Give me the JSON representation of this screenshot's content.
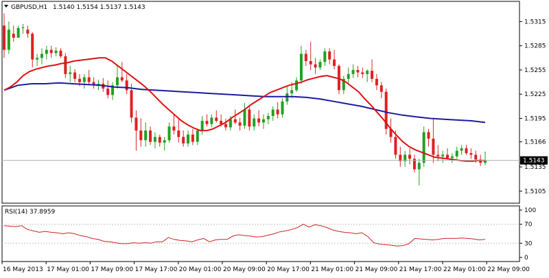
{
  "header": {
    "symbol": "GBPUSD,H1",
    "ohlc": "1.5140 1.5154 1.5137 1.5143"
  },
  "rsi": {
    "label": "RSI(14) 37.8959",
    "ticks": [
      "100",
      "70",
      "30",
      "0"
    ]
  },
  "colors": {
    "bull": "#22a022",
    "bear": "#dd2222",
    "ma_fast": "#dd1111",
    "ma_slow": "#1a1aa0",
    "rsi_line": "#cc2222",
    "last_price_label_bg": "#000000"
  },
  "chart_data": [
    {
      "type": "candlestick",
      "title": "",
      "ylim": [
        1.509,
        1.534
      ],
      "y_ticks": [
        "1.5315",
        "1.5285",
        "1.5255",
        "1.5225",
        "1.5195",
        "1.5166",
        "1.5135",
        "1.5105"
      ],
      "last_price": "1.5143",
      "x_ticks": [
        "16 May 2013",
        "17 May 01:00",
        "17 May 09:00",
        "17 May 17:00",
        "20 May 01:00",
        "20 May 09:00",
        "20 May 17:00",
        "21 May 01:00",
        "21 May 09:00",
        "21 May 17:00",
        "22 May 01:00",
        "22 May 09:00"
      ],
      "candles": [
        [
          1.531,
          1.5325,
          1.527,
          1.528
        ],
        [
          1.528,
          1.5315,
          1.5275,
          1.5305
        ],
        [
          1.53,
          1.531,
          1.529,
          1.5295
        ],
        [
          1.5295,
          1.531,
          1.5295,
          1.5307
        ],
        [
          1.5307,
          1.5312,
          1.53,
          1.5308
        ],
        [
          1.5305,
          1.531,
          1.5295,
          1.53
        ],
        [
          1.53,
          1.5302,
          1.5258,
          1.5268
        ],
        [
          1.5268,
          1.5275,
          1.526,
          1.527
        ],
        [
          1.527,
          1.5282,
          1.5262,
          1.5275
        ],
        [
          1.5275,
          1.5285,
          1.5268,
          1.528
        ],
        [
          1.528,
          1.5285,
          1.527,
          1.5276
        ],
        [
          1.5276,
          1.5283,
          1.5272,
          1.5279
        ],
        [
          1.5279,
          1.5282,
          1.527,
          1.5272
        ],
        [
          1.5272,
          1.5276,
          1.5245,
          1.525
        ],
        [
          1.525,
          1.526,
          1.524,
          1.5252
        ],
        [
          1.5252,
          1.5256,
          1.524,
          1.5244
        ],
        [
          1.5244,
          1.525,
          1.5235,
          1.524
        ],
        [
          1.524,
          1.525,
          1.5232,
          1.5246
        ],
        [
          1.5246,
          1.5255,
          1.5236,
          1.524
        ],
        [
          1.524,
          1.5246,
          1.5232,
          1.5236
        ],
        [
          1.5236,
          1.5243,
          1.523,
          1.5238
        ],
        [
          1.5238,
          1.5245,
          1.5228,
          1.5232
        ],
        [
          1.5232,
          1.5242,
          1.522,
          1.5224
        ],
        [
          1.5224,
          1.524,
          1.5218,
          1.5236
        ],
        [
          1.5236,
          1.5262,
          1.5232,
          1.5246
        ],
        [
          1.5246,
          1.5265,
          1.524,
          1.5242
        ],
        [
          1.5242,
          1.525,
          1.5225,
          1.523
        ],
        [
          1.523,
          1.5238,
          1.519,
          1.5196
        ],
        [
          1.5196,
          1.5205,
          1.5155,
          1.518
        ],
        [
          1.518,
          1.5195,
          1.516,
          1.5168
        ],
        [
          1.5168,
          1.519,
          1.516,
          1.518
        ],
        [
          1.518,
          1.5185,
          1.5162,
          1.5166
        ],
        [
          1.5166,
          1.5178,
          1.5158,
          1.5172
        ],
        [
          1.5172,
          1.5175,
          1.516,
          1.5165
        ],
        [
          1.5165,
          1.5172,
          1.5155,
          1.5168
        ],
        [
          1.5168,
          1.519,
          1.5165,
          1.5185
        ],
        [
          1.5185,
          1.52,
          1.5175,
          1.518
        ],
        [
          1.518,
          1.5195,
          1.5165,
          1.5172
        ],
        [
          1.5172,
          1.518,
          1.516,
          1.5164
        ],
        [
          1.5164,
          1.518,
          1.516,
          1.5175
        ],
        [
          1.5175,
          1.5182,
          1.5162,
          1.5166
        ],
        [
          1.5166,
          1.5182,
          1.5162,
          1.518
        ],
        [
          1.518,
          1.5198,
          1.5175,
          1.5192
        ],
        [
          1.5192,
          1.52,
          1.5185,
          1.5188
        ],
        [
          1.5188,
          1.52,
          1.5184,
          1.5196
        ],
        [
          1.5196,
          1.5205,
          1.519,
          1.5192
        ],
        [
          1.5192,
          1.52,
          1.5185,
          1.5188
        ],
        [
          1.5188,
          1.5195,
          1.518,
          1.5184
        ],
        [
          1.5184,
          1.5198,
          1.518,
          1.5194
        ],
        [
          1.5194,
          1.5206,
          1.5188,
          1.519
        ],
        [
          1.519,
          1.5196,
          1.518,
          1.5186
        ],
        [
          1.5186,
          1.5214,
          1.5182,
          1.5206
        ],
        [
          1.5206,
          1.521,
          1.518,
          1.5185
        ],
        [
          1.5185,
          1.52,
          1.518,
          1.5195
        ],
        [
          1.5195,
          1.5205,
          1.5185,
          1.519
        ],
        [
          1.519,
          1.52,
          1.5182,
          1.5194
        ],
        [
          1.5194,
          1.5202,
          1.5188,
          1.5198
        ],
        [
          1.5198,
          1.521,
          1.5192,
          1.5206
        ],
        [
          1.5206,
          1.5215,
          1.5195,
          1.52
        ],
        [
          1.52,
          1.522,
          1.5196,
          1.5216
        ],
        [
          1.5216,
          1.5235,
          1.5212,
          1.5226
        ],
        [
          1.5226,
          1.524,
          1.522,
          1.523
        ],
        [
          1.523,
          1.5246,
          1.5228,
          1.5242
        ],
        [
          1.5242,
          1.5285,
          1.5238,
          1.5275
        ],
        [
          1.5275,
          1.528,
          1.526,
          1.5266
        ],
        [
          1.5266,
          1.529,
          1.5255,
          1.5262
        ],
        [
          1.5262,
          1.527,
          1.525,
          1.5258
        ],
        [
          1.5258,
          1.5268,
          1.5255,
          1.5265
        ],
        [
          1.5265,
          1.5282,
          1.526,
          1.5278
        ],
        [
          1.5278,
          1.5282,
          1.5262,
          1.5268
        ],
        [
          1.5268,
          1.528,
          1.5256,
          1.526
        ],
        [
          1.526,
          1.5262,
          1.5225,
          1.523
        ],
        [
          1.523,
          1.5248,
          1.5225,
          1.5244
        ],
        [
          1.5244,
          1.5258,
          1.5238,
          1.525
        ],
        [
          1.525,
          1.5262,
          1.5245,
          1.5255
        ],
        [
          1.5255,
          1.526,
          1.5246,
          1.5252
        ],
        [
          1.5252,
          1.5258,
          1.5245,
          1.525
        ],
        [
          1.525,
          1.5256,
          1.524,
          1.5254
        ],
        [
          1.5254,
          1.5268,
          1.524,
          1.5244
        ],
        [
          1.5244,
          1.525,
          1.523,
          1.5236
        ],
        [
          1.5236,
          1.524,
          1.522,
          1.5228
        ],
        [
          1.5228,
          1.5232,
          1.5175,
          1.5182
        ],
        [
          1.5182,
          1.5195,
          1.5165,
          1.5172
        ],
        [
          1.5172,
          1.518,
          1.5145,
          1.515
        ],
        [
          1.515,
          1.516,
          1.5135,
          1.5142
        ],
        [
          1.5142,
          1.5155,
          1.5135,
          1.515
        ],
        [
          1.515,
          1.5158,
          1.5138,
          1.5145
        ],
        [
          1.5145,
          1.515,
          1.5128,
          1.5132
        ],
        [
          1.5132,
          1.5145,
          1.5112,
          1.514
        ],
        [
          1.514,
          1.5185,
          1.5135,
          1.5178
        ],
        [
          1.5178,
          1.5182,
          1.516,
          1.517
        ],
        [
          1.517,
          1.5195,
          1.514,
          1.515
        ],
        [
          1.515,
          1.5162,
          1.5142,
          1.5148
        ],
        [
          1.5148,
          1.5155,
          1.514,
          1.515
        ],
        [
          1.515,
          1.5158,
          1.5144,
          1.5146
        ],
        [
          1.5146,
          1.5152,
          1.514,
          1.5148
        ],
        [
          1.5148,
          1.516,
          1.5145,
          1.5155
        ],
        [
          1.5155,
          1.5162,
          1.515,
          1.5158
        ],
        [
          1.5158,
          1.5162,
          1.515,
          1.5152
        ],
        [
          1.5152,
          1.5158,
          1.5145,
          1.515
        ],
        [
          1.515,
          1.5155,
          1.514,
          1.5144
        ],
        [
          1.5144,
          1.515,
          1.5136,
          1.514
        ],
        [
          1.514,
          1.5154,
          1.5137,
          1.5143
        ]
      ],
      "ma_fast": [
        1.523,
        1.5234,
        1.524,
        1.5248,
        1.5253,
        1.5256,
        1.5258,
        1.526,
        1.5261,
        1.5263,
        1.5264,
        1.5266,
        1.5267,
        1.5268,
        1.5269,
        1.527,
        1.527,
        1.5266,
        1.526,
        1.5254,
        1.5248,
        1.5242,
        1.5236,
        1.5229,
        1.5221,
        1.5213,
        1.5206,
        1.5199,
        1.5192,
        1.5187,
        1.5183,
        1.518,
        1.518,
        1.5182,
        1.5186,
        1.519,
        1.5196,
        1.5201,
        1.5206,
        1.5212,
        1.5217,
        1.5222,
        1.5227,
        1.523,
        1.5233,
        1.5236,
        1.5238,
        1.524,
        1.5243,
        1.5245,
        1.5247,
        1.5248,
        1.5246,
        1.5244,
        1.524,
        1.5234,
        1.5228,
        1.5219,
        1.5211,
        1.5202,
        1.5193,
        1.5183,
        1.5174,
        1.5166,
        1.516,
        1.5156,
        1.5153,
        1.515,
        1.5147,
        1.5146,
        1.5145,
        1.5144,
        1.5143,
        1.5142,
        1.5142,
        1.5143,
        1.5143
      ],
      "ma_slow": [
        1.523,
        1.5236,
        1.5238,
        1.5238,
        1.5239,
        1.5238,
        1.5237,
        1.5236,
        1.5234,
        1.5233,
        1.5231,
        1.523,
        1.5229,
        1.5228,
        1.5227,
        1.5226,
        1.5225,
        1.5224,
        1.5223,
        1.5222,
        1.5222,
        1.5222,
        1.5221,
        1.5219,
        1.5216,
        1.5213,
        1.521,
        1.5206,
        1.5202,
        1.5199,
        1.5197,
        1.5195,
        1.5194,
        1.5193,
        1.5192,
        1.519
      ],
      "rsi_values": [
        67,
        66,
        65,
        67,
        59,
        56,
        53,
        55,
        53,
        52,
        50,
        52,
        50,
        46,
        44,
        40,
        38,
        34,
        33,
        31,
        29,
        29,
        31,
        30,
        31,
        30,
        33,
        33,
        42,
        38,
        36,
        35,
        33,
        37,
        40,
        33,
        37,
        38,
        38,
        45,
        48,
        46,
        45,
        43,
        44,
        47,
        50,
        54,
        56,
        59,
        63,
        70,
        64,
        69,
        67,
        63,
        58,
        55,
        53,
        52,
        50,
        52,
        44,
        31,
        28,
        27,
        26,
        24,
        25,
        29,
        40,
        39,
        38,
        37,
        38,
        40,
        40,
        40,
        41,
        40,
        39,
        37,
        38
      ]
    }
  ]
}
